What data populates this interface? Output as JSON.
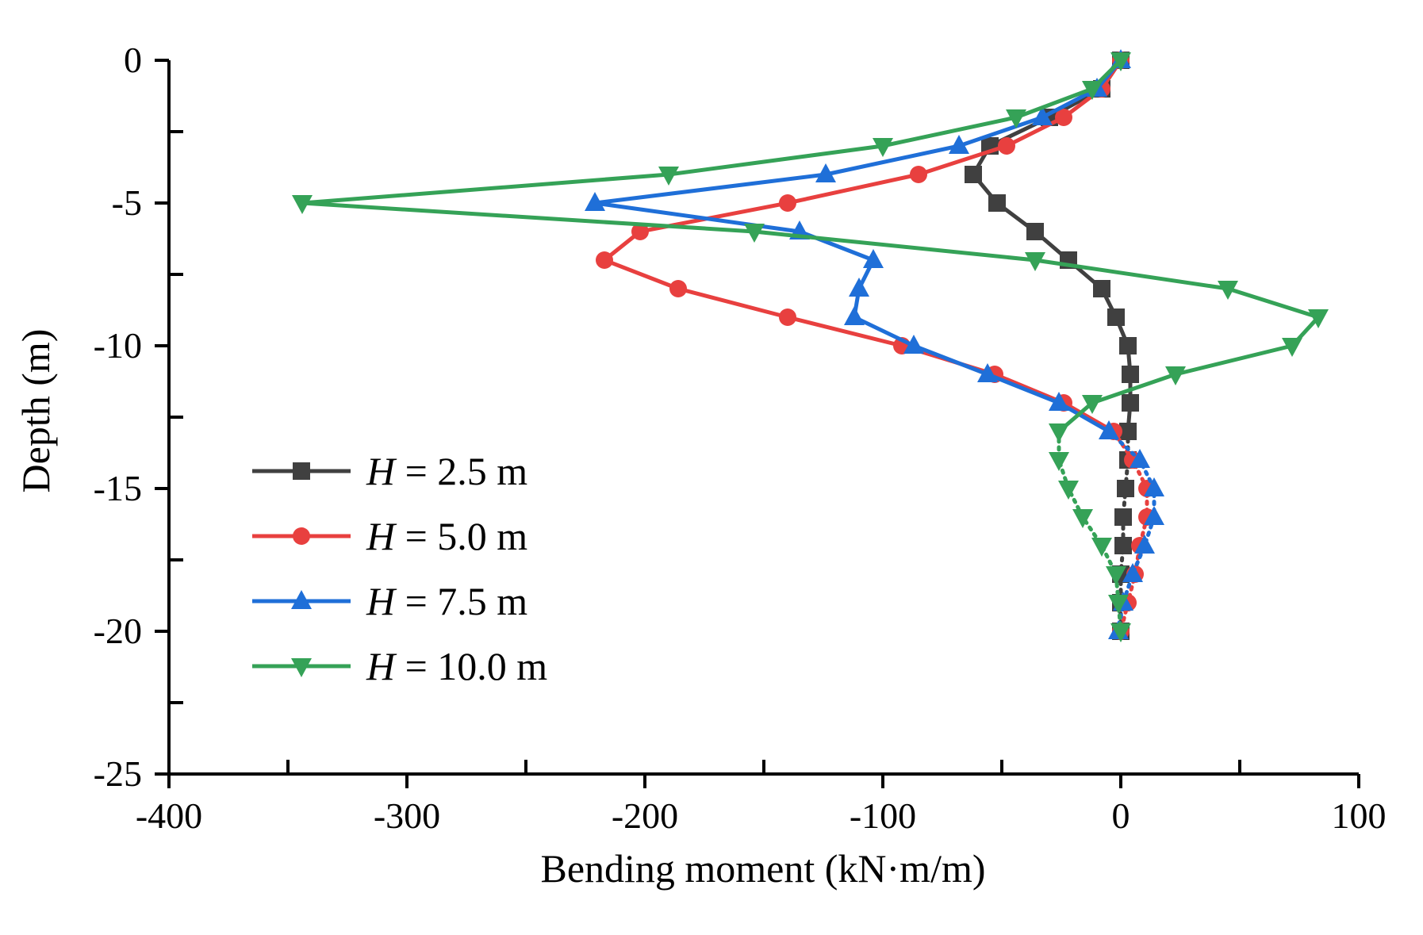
{
  "chart_data": {
    "type": "line",
    "xlabel": "Bending moment (kN·m/m)",
    "ylabel": "Depth (m)",
    "xlim": [
      -400,
      100
    ],
    "ylim": [
      -25,
      0
    ],
    "x_ticks": [
      -400,
      -300,
      -200,
      -100,
      0,
      100
    ],
    "y_ticks": [
      0,
      -5,
      -10,
      -15,
      -20,
      -25
    ],
    "x_tick_labels": [
      "-400",
      "-300",
      "-200",
      "-100",
      "0",
      "100"
    ],
    "y_tick_labels": [
      "0",
      "-5",
      "-10",
      "-15",
      "-20",
      "-25"
    ],
    "grid": false,
    "legend_position": "lower-left",
    "series": [
      {
        "name": "H = 2.5 m",
        "legend_var": "H",
        "legend_rest": " = 2.5 m",
        "color": "#404040",
        "marker": "square",
        "points": [
          [
            0,
            0
          ],
          [
            -8,
            -1
          ],
          [
            -30,
            -2
          ],
          [
            -55,
            -3
          ],
          [
            -62,
            -4
          ],
          [
            -52,
            -5
          ],
          [
            -36,
            -6
          ],
          [
            -22,
            -7
          ],
          [
            -8,
            -8
          ],
          [
            -2,
            -9
          ],
          [
            3,
            -10
          ],
          [
            4,
            -11
          ],
          [
            4,
            -12
          ],
          [
            3,
            -13
          ],
          [
            3,
            -14
          ],
          [
            2,
            -15
          ],
          [
            1,
            -16
          ],
          [
            1,
            -17
          ],
          [
            0,
            -18
          ],
          [
            0,
            -19
          ],
          [
            0,
            -20
          ]
        ]
      },
      {
        "name": "H = 5.0 m",
        "legend_var": "H",
        "legend_rest": " = 5.0 m",
        "color": "#e8403f",
        "marker": "circle",
        "points": [
          [
            0,
            0
          ],
          [
            -8,
            -1
          ],
          [
            -24,
            -2
          ],
          [
            -48,
            -3
          ],
          [
            -85,
            -4
          ],
          [
            -140,
            -5
          ],
          [
            -202,
            -6
          ],
          [
            -217,
            -7
          ],
          [
            -186,
            -8
          ],
          [
            -140,
            -9
          ],
          [
            -92,
            -10
          ],
          [
            -53,
            -11
          ],
          [
            -24,
            -12
          ],
          [
            -3,
            -13
          ],
          [
            5,
            -14
          ],
          [
            11,
            -15
          ],
          [
            11,
            -16
          ],
          [
            8,
            -17
          ],
          [
            6,
            -18
          ],
          [
            3,
            -19
          ],
          [
            0,
            -20
          ]
        ]
      },
      {
        "name": "H = 7.5 m",
        "legend_var": "H",
        "legend_rest": " = 7.5 m",
        "color": "#1f6fd8",
        "marker": "triangle-up",
        "points": [
          [
            0,
            0
          ],
          [
            -10,
            -1
          ],
          [
            -33,
            -2
          ],
          [
            -68,
            -3
          ],
          [
            -124,
            -4
          ],
          [
            -221,
            -5
          ],
          [
            -135,
            -6
          ],
          [
            -104,
            -7
          ],
          [
            -110,
            -8
          ],
          [
            -112,
            -9
          ],
          [
            -87,
            -10
          ],
          [
            -56,
            -11
          ],
          [
            -26,
            -12
          ],
          [
            -5,
            -13
          ],
          [
            8,
            -14
          ],
          [
            14,
            -15
          ],
          [
            14,
            -16
          ],
          [
            10,
            -17
          ],
          [
            5,
            -18
          ],
          [
            1,
            -19
          ],
          [
            -1,
            -20
          ]
        ]
      },
      {
        "name": "H = 10.0 m",
        "legend_var": "H",
        "legend_rest": " = 10.0 m",
        "color": "#35a257",
        "marker": "triangle-down",
        "points": [
          [
            0,
            0
          ],
          [
            -12,
            -1
          ],
          [
            -44,
            -2
          ],
          [
            -100,
            -3
          ],
          [
            -190,
            -4
          ],
          [
            -344,
            -5
          ],
          [
            -154,
            -6
          ],
          [
            -36,
            -7
          ],
          [
            45,
            -8
          ],
          [
            83,
            -9
          ],
          [
            72,
            -10
          ],
          [
            23,
            -11
          ],
          [
            -12,
            -12
          ],
          [
            -26,
            -13
          ],
          [
            -26,
            -14
          ],
          [
            -22,
            -15
          ],
          [
            -16,
            -16
          ],
          [
            -8,
            -17
          ],
          [
            -2,
            -18
          ],
          [
            -1,
            -19
          ],
          [
            0,
            -20
          ]
        ]
      }
    ]
  }
}
